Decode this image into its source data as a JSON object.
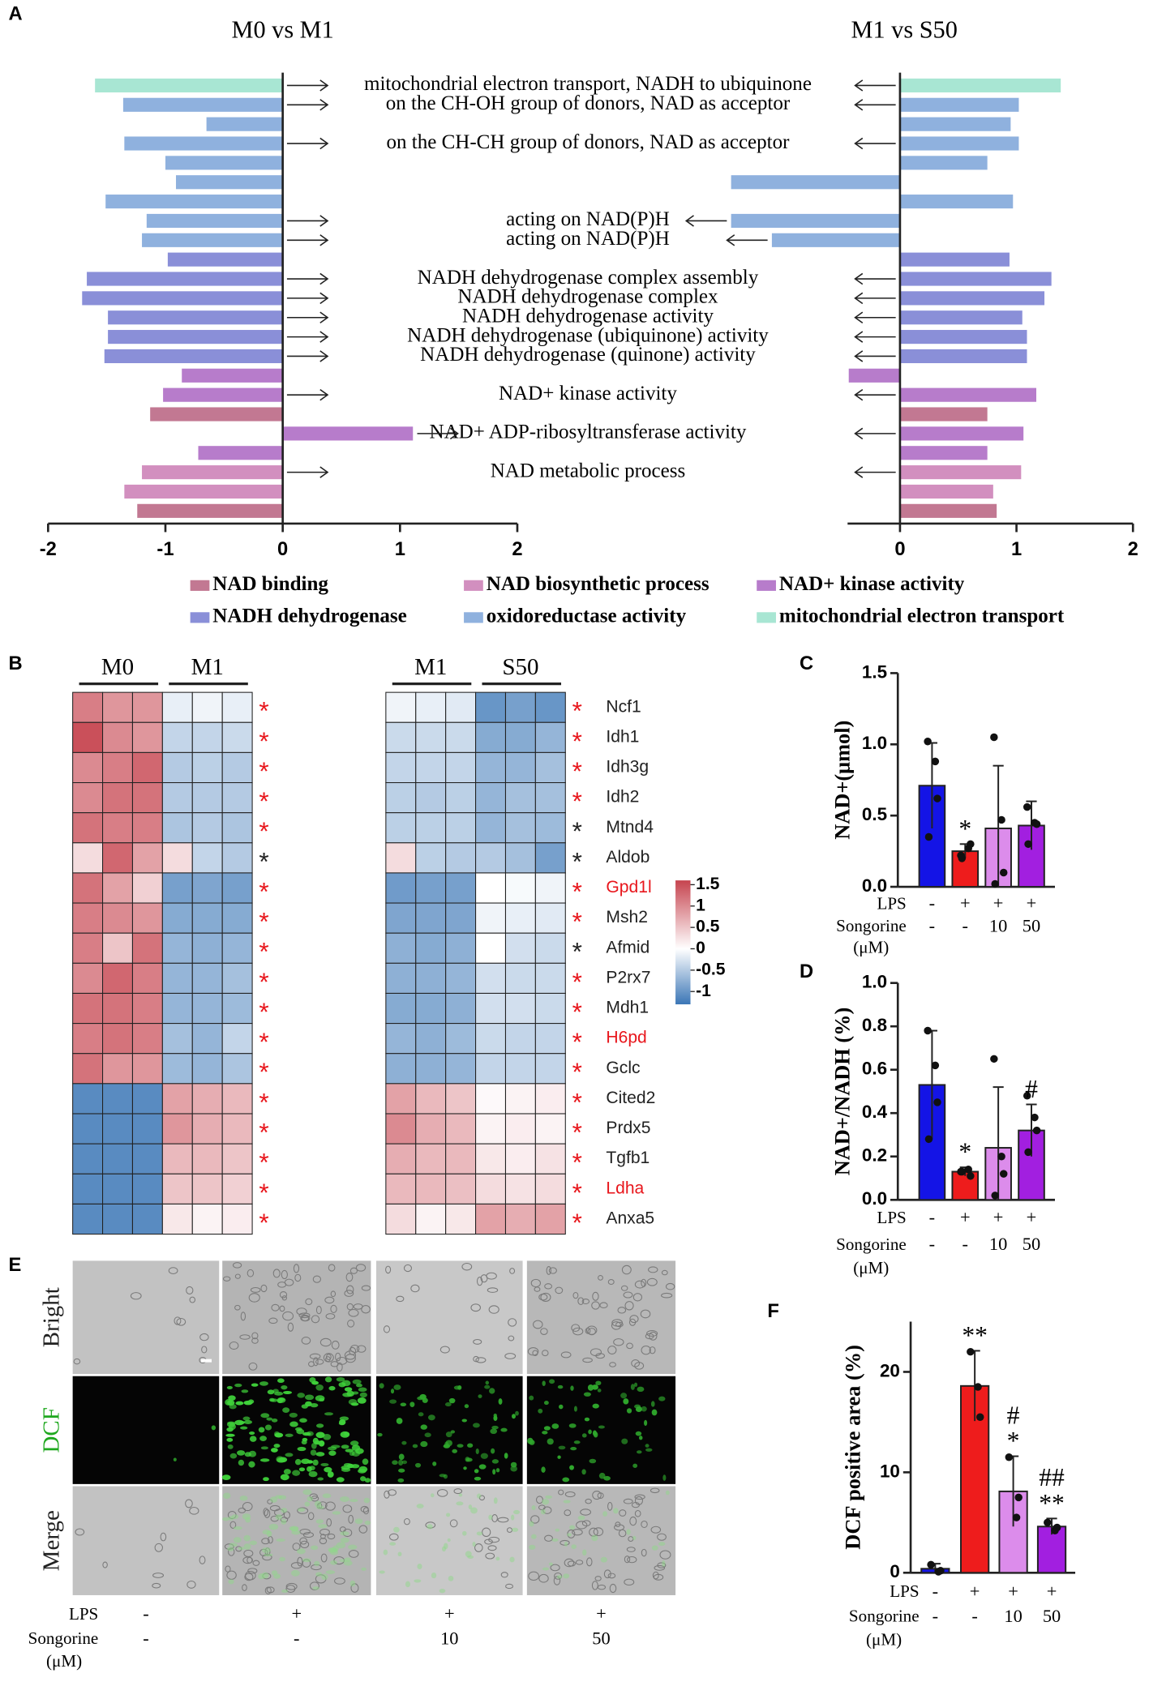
{
  "panel_labels": [
    "A",
    "B",
    "C",
    "D",
    "E",
    "F"
  ],
  "chart_data": [
    {
      "type": "diverging_hbar",
      "categories": [
        "mitochondrial electron transport, NADH to ubiquinone",
        "on the CH-OH group of donors, NAD as acceptor",
        null,
        "on the CH-CH group of donors, NAD as acceptor",
        null,
        null,
        null,
        "acting on NAD(P)H",
        "acting on NAD(P)H",
        null,
        "NADH dehydrogenase complex assembly",
        "NADH dehydrogenase complex",
        "NADH dehydrogenase activity",
        "NADH dehydrogenase (ubiquinone) activity",
        "NADH dehydrogenase (quinone) activity",
        null,
        "NAD+ kinase activity",
        null,
        "NAD+ ADP-ribosyltransferase activity",
        null,
        "NAD metabolic process",
        null,
        null
      ],
      "series": [
        {
          "name": "M0 vs M1",
          "values": [
            -1.6,
            -1.36,
            -0.65,
            -1.35,
            -1.0,
            -0.91,
            -1.51,
            -1.16,
            -1.2,
            -0.98,
            -1.67,
            -1.71,
            -1.49,
            -1.49,
            -1.52,
            -0.86,
            -1.02,
            -1.13,
            1.11,
            -0.72,
            -1.2,
            -1.35,
            -1.24
          ]
        },
        {
          "name": "M1 vs S50",
          "values": [
            1.38,
            1.02,
            0.95,
            1.02,
            0.75,
            -1.45,
            0.97,
            -1.45,
            -1.1,
            0.94,
            1.3,
            1.24,
            1.05,
            1.09,
            1.09,
            -0.44,
            1.17,
            0.75,
            1.06,
            0.75,
            1.04,
            0.8,
            0.83
          ]
        }
      ],
      "bar_colors": [
        "#a8e6d3",
        "#8fb1de",
        "#8fb1de",
        "#8fb1de",
        "#8fb1de",
        "#8fb1de",
        "#8fb1de",
        "#8fb1de",
        "#8fb1de",
        "#8a8fd8",
        "#8a8fd8",
        "#8a8fd8",
        "#8a8fd8",
        "#8a8fd8",
        "#8a8fd8",
        "#b77ccb",
        "#b77ccb",
        "#c27892",
        "#b77ccb",
        "#b77ccb",
        "#d28fbf",
        "#d28fbf",
        "#c27892"
      ],
      "xlim": [
        -2,
        2
      ],
      "xticks": [
        -2,
        -1,
        0,
        1,
        2
      ],
      "x2lim": [
        -0.45,
        2
      ],
      "x2ticks": [
        0,
        1,
        2
      ],
      "legend": [
        {
          "name": "NAD binding",
          "color": "#c27892"
        },
        {
          "name": "NAD biosynthetic process",
          "color": "#d28fbf"
        },
        {
          "name": "NAD+ kinase activity",
          "color": "#b77ccb"
        },
        {
          "name": "NADH dehydrogenase",
          "color": "#8a8fd8"
        },
        {
          "name": "oxidoreductase activity",
          "color": "#8fb1de"
        },
        {
          "name": "mitochondrial electron transport",
          "color": "#a8e6d3"
        }
      ]
    },
    {
      "type": "heatmap",
      "genes": [
        "Ncf1",
        "Idh1",
        "Idh3g",
        "Idh2",
        "Mtnd4",
        "Aldob",
        "Gpd1l",
        "Msh2",
        "Afmid",
        "P2rx7",
        "Mdh1",
        "H6pd",
        "Gclc",
        "Cited2",
        "Prdx5",
        "Tgfb1",
        "Ldha",
        "Anxa5"
      ],
      "gene_colors": [
        "#222222",
        "#222222",
        "#222222",
        "#222222",
        "#222222",
        "#222222",
        "#e8161c",
        "#222222",
        "#222222",
        "#222222",
        "#222222",
        "#e8161c",
        "#222222",
        "#222222",
        "#222222",
        "#222222",
        "#e8161c",
        "#222222"
      ],
      "panels": [
        {
          "groups": [
            "M0",
            "M1"
          ],
          "values": [
            [
              1.1,
              0.9,
              0.9,
              -0.15,
              -0.1,
              -0.15
            ],
            [
              1.5,
              1.0,
              0.9,
              -0.4,
              -0.4,
              -0.35
            ],
            [
              1.0,
              1.1,
              1.3,
              -0.5,
              -0.45,
              -0.5
            ],
            [
              1.0,
              1.2,
              1.2,
              -0.5,
              -0.5,
              -0.5
            ],
            [
              1.2,
              1.1,
              1.1,
              -0.55,
              -0.5,
              -0.55
            ],
            [
              0.3,
              1.3,
              0.8,
              0.3,
              -0.4,
              -0.5
            ],
            [
              1.2,
              0.8,
              0.4,
              -0.9,
              -0.85,
              -0.9
            ],
            [
              1.1,
              1.0,
              0.9,
              -0.8,
              -0.8,
              -0.8
            ],
            [
              1.1,
              0.5,
              1.2,
              -0.7,
              -0.75,
              -0.7
            ],
            [
              1.0,
              1.3,
              1.1,
              -0.7,
              -0.7,
              -0.6
            ],
            [
              1.2,
              1.2,
              1.1,
              -0.7,
              -0.7,
              -0.65
            ],
            [
              1.1,
              1.2,
              1.1,
              -0.6,
              -0.7,
              -0.4
            ],
            [
              1.2,
              0.9,
              0.9,
              -0.65,
              -0.7,
              -0.55
            ],
            [
              -1.1,
              -1.1,
              -1.1,
              0.8,
              0.7,
              0.6
            ],
            [
              -1.1,
              -1.1,
              -1.1,
              0.9,
              0.7,
              0.6
            ],
            [
              -1.1,
              -1.1,
              -1.1,
              0.6,
              0.6,
              0.5
            ],
            [
              -1.1,
              -1.1,
              -1.1,
              0.5,
              0.5,
              0.4
            ],
            [
              -1.1,
              -1.1,
              -1.1,
              0.2,
              0.1,
              0.15
            ]
          ],
          "significance": [
            "*",
            "*",
            "*",
            "*",
            "*",
            "*",
            "*",
            "*",
            "*",
            "*",
            "*",
            "*",
            "*",
            "*",
            "*",
            "*",
            "*",
            "*"
          ],
          "significance_colors": [
            "#e8161c",
            "#e8161c",
            "#e8161c",
            "#e8161c",
            "#e8161c",
            "#222222",
            "#e8161c",
            "#e8161c",
            "#e8161c",
            "#e8161c",
            "#e8161c",
            "#e8161c",
            "#e8161c",
            "#e8161c",
            "#e8161c",
            "#e8161c",
            "#e8161c",
            "#e8161c"
          ]
        },
        {
          "groups": [
            "M1",
            "S50"
          ],
          "values": [
            [
              -0.1,
              -0.15,
              -0.2,
              -1.0,
              -0.9,
              -1.0
            ],
            [
              -0.35,
              -0.35,
              -0.35,
              -0.8,
              -0.8,
              -0.7
            ],
            [
              -0.4,
              -0.4,
              -0.4,
              -0.7,
              -0.7,
              -0.6
            ],
            [
              -0.45,
              -0.5,
              -0.45,
              -0.7,
              -0.6,
              -0.6
            ],
            [
              -0.45,
              -0.45,
              -0.45,
              -0.7,
              -0.6,
              -0.65
            ],
            [
              0.3,
              -0.45,
              -0.5,
              -0.5,
              -0.6,
              -0.9
            ],
            [
              -0.95,
              -0.9,
              -0.9,
              0.0,
              -0.05,
              -0.1
            ],
            [
              -0.85,
              -0.85,
              -0.85,
              -0.1,
              -0.15,
              -0.2
            ],
            [
              -0.75,
              -0.8,
              -0.75,
              0.0,
              -0.3,
              -0.35
            ],
            [
              -0.75,
              -0.75,
              -0.7,
              -0.3,
              -0.35,
              -0.35
            ],
            [
              -0.8,
              -0.8,
              -0.75,
              -0.3,
              -0.3,
              -0.35
            ],
            [
              -0.7,
              -0.75,
              -0.65,
              -0.35,
              -0.4,
              -0.4
            ],
            [
              -0.75,
              -0.75,
              -0.7,
              -0.4,
              -0.4,
              -0.4
            ],
            [
              0.8,
              0.6,
              0.5,
              0.05,
              0.1,
              0.15
            ],
            [
              1.0,
              0.7,
              0.6,
              0.1,
              0.15,
              0.1
            ],
            [
              0.7,
              0.6,
              0.6,
              0.2,
              0.15,
              0.25
            ],
            [
              0.6,
              0.6,
              0.55,
              0.3,
              0.25,
              0.3
            ],
            [
              0.3,
              0.1,
              0.2,
              0.8,
              0.7,
              0.8
            ]
          ],
          "significance": [
            "*",
            "*",
            "*",
            "*",
            "*",
            "*",
            "*",
            "*",
            "*",
            "*",
            "*",
            "*",
            "*",
            "*",
            "*",
            "*",
            "*",
            "*"
          ],
          "significance_colors": [
            "#e8161c",
            "#e8161c",
            "#e8161c",
            "#e8161c",
            "#222222",
            "#222222",
            "#e8161c",
            "#e8161c",
            "#222222",
            "#e8161c",
            "#e8161c",
            "#e8161c",
            "#e8161c",
            "#e8161c",
            "#e8161c",
            "#e8161c",
            "#e8161c",
            "#e8161c"
          ]
        }
      ],
      "clim": [
        -1.3,
        1.6
      ],
      "colorbar_ticks": [
        1.5,
        1,
        0.5,
        0,
        -0.5,
        -1
      ],
      "colors": {
        "low": "#3b76b6",
        "mid": "#ffffff",
        "high": "#c6444f"
      }
    },
    {
      "type": "bar",
      "ylabel": "NAD+(μmol)",
      "values": [
        0.71,
        0.25,
        0.41,
        0.43
      ],
      "errors": [
        0.3,
        0.05,
        0.44,
        0.17
      ],
      "points": [
        [
          1.02,
          0.88,
          0.62,
          0.35
        ],
        [
          0.22,
          0.27,
          0.3,
          0.2
        ],
        [
          1.05,
          0.47,
          0.1,
          0.02
        ],
        [
          0.56,
          0.45,
          0.44,
          0.3
        ]
      ],
      "colors": [
        "#1414e6",
        "#ee1c1c",
        "#dc8ceb",
        "#a21fe0"
      ],
      "annotations": [
        [],
        [
          "*"
        ],
        [],
        []
      ],
      "ylim": [
        0,
        1.5
      ],
      "yticks": [
        {
          "value": 0,
          "label": "0.0"
        },
        {
          "value": 0.5,
          "label": "0.5"
        },
        {
          "value": 1,
          "label": "1.0"
        },
        1.5
      ],
      "treatments": [
        {
          "label": "LPS",
          "values": [
            "-",
            "+",
            "+",
            "+"
          ]
        },
        {
          "label": "Songorine",
          "unit": "(μM)",
          "values": [
            "-",
            "-",
            "10",
            "50"
          ]
        }
      ]
    },
    {
      "type": "bar",
      "ylabel": "NAD+/NADH (%)",
      "values": [
        0.53,
        0.13,
        0.24,
        0.32
      ],
      "errors": [
        0.25,
        0.02,
        0.28,
        0.12
      ],
      "points": [
        [
          0.78,
          0.62,
          0.45,
          0.28
        ],
        [
          0.13,
          0.14,
          0.11,
          0.13
        ],
        [
          0.65,
          0.2,
          0.12,
          0.02
        ],
        [
          0.48,
          0.38,
          0.32,
          0.22
        ]
      ],
      "colors": [
        "#1414e6",
        "#ee1c1c",
        "#dc8ceb",
        "#a21fe0"
      ],
      "annotations": [
        [],
        [
          "*"
        ],
        [],
        [
          "#"
        ]
      ],
      "ylim": [
        0,
        1
      ],
      "yticks": [
        {
          "value": 0,
          "label": "0.0"
        },
        0.2,
        0.4,
        0.6,
        0.8,
        {
          "value": 1,
          "label": "1.0"
        }
      ],
      "treatments": [
        {
          "label": "LPS",
          "values": [
            "-",
            "+",
            "+",
            "+"
          ]
        },
        {
          "label": "Songorine",
          "unit": "(μM)",
          "values": [
            "-",
            "-",
            "10",
            "50"
          ]
        }
      ]
    },
    {
      "type": "bar",
      "ylabel": "DCF positive area (%)",
      "values": [
        0.4,
        18.6,
        8.1,
        4.6
      ],
      "errors": [
        0.5,
        3.5,
        3.5,
        0.8
      ],
      "points": [
        [
          0.8,
          0.1,
          0.2
        ],
        [
          22.0,
          18.5,
          15.5
        ],
        [
          11.5,
          5.5,
          7.5
        ],
        [
          5.0,
          4.2,
          4.5
        ]
      ],
      "colors": [
        "#1414e6",
        "#ee1c1c",
        "#dc8ceb",
        "#a21fe0"
      ],
      "annotations": [
        [],
        [
          "**"
        ],
        [
          "#",
          "*"
        ],
        [
          "##",
          "**"
        ]
      ],
      "ylim": [
        0,
        25
      ],
      "yticks": [
        0,
        10,
        20
      ],
      "treatments": [
        {
          "label": "LPS",
          "values": [
            "-",
            "+",
            "+",
            "+"
          ]
        },
        {
          "label": "Songorine",
          "unit": "(μM)",
          "values": [
            "-",
            "-",
            "10",
            "50"
          ]
        }
      ]
    }
  ],
  "image_panel": {
    "row_labels": [
      "Bright",
      "DCF",
      "Merge"
    ],
    "row_label_colors": [
      "#222222",
      "#1fa81f",
      "#222222"
    ],
    "treatments": [
      {
        "label": "LPS",
        "values": [
          "-",
          "+",
          "+",
          "+"
        ]
      },
      {
        "label": "Songorine",
        "unit": "(μM)",
        "values": [
          "-",
          "-",
          "10",
          "50"
        ]
      }
    ]
  }
}
